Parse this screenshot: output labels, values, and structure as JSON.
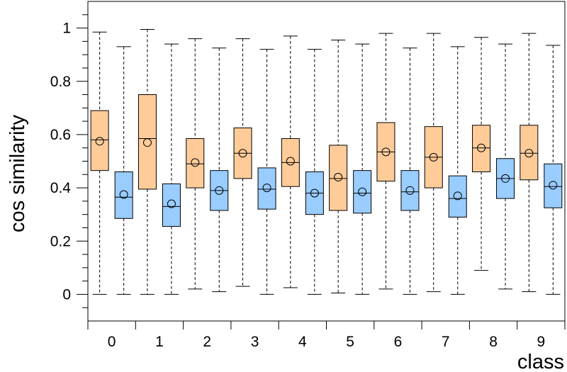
{
  "chart_data": {
    "type": "boxplot",
    "title": "",
    "xlabel": "class",
    "ylabel": "cos similarity",
    "ylim": [
      -0.1,
      1.1
    ],
    "yticks": [
      "0",
      "0.2",
      "0.4",
      "0.6",
      "0.8",
      "1"
    ],
    "categories": [
      "0",
      "1",
      "2",
      "3",
      "4",
      "5",
      "6",
      "7",
      "8",
      "9"
    ],
    "grid": false,
    "legend": "none",
    "series": [
      {
        "color": "#FFCC99",
        "boxes": [
          {
            "min": 0.0,
            "q1": 0.465,
            "median": 0.58,
            "q3": 0.69,
            "max": 0.985,
            "mean": 0.575
          },
          {
            "min": 0.0,
            "q1": 0.395,
            "median": 0.585,
            "q3": 0.75,
            "max": 0.995,
            "mean": 0.57
          },
          {
            "min": 0.02,
            "q1": 0.4,
            "median": 0.49,
            "q3": 0.585,
            "max": 0.96,
            "mean": 0.495
          },
          {
            "min": 0.03,
            "q1": 0.435,
            "median": 0.53,
            "q3": 0.625,
            "max": 0.96,
            "mean": 0.53
          },
          {
            "min": 0.025,
            "q1": 0.405,
            "median": 0.495,
            "q3": 0.585,
            "max": 0.97,
            "mean": 0.5
          },
          {
            "min": 0.005,
            "q1": 0.315,
            "median": 0.435,
            "q3": 0.56,
            "max": 0.955,
            "mean": 0.44
          },
          {
            "min": 0.02,
            "q1": 0.425,
            "median": 0.535,
            "q3": 0.645,
            "max": 0.98,
            "mean": 0.535
          },
          {
            "min": 0.01,
            "q1": 0.4,
            "median": 0.515,
            "q3": 0.63,
            "max": 0.98,
            "mean": 0.515
          },
          {
            "min": 0.09,
            "q1": 0.46,
            "median": 0.55,
            "q3": 0.635,
            "max": 0.965,
            "mean": 0.55
          },
          {
            "min": 0.01,
            "q1": 0.43,
            "median": 0.53,
            "q3": 0.635,
            "max": 0.98,
            "mean": 0.53
          }
        ]
      },
      {
        "color": "#99CCFF",
        "boxes": [
          {
            "min": 0.0,
            "q1": 0.285,
            "median": 0.365,
            "q3": 0.46,
            "max": 0.93,
            "mean": 0.375
          },
          {
            "min": 0.0,
            "q1": 0.255,
            "median": 0.33,
            "q3": 0.415,
            "max": 0.94,
            "mean": 0.34
          },
          {
            "min": 0.01,
            "q1": 0.315,
            "median": 0.39,
            "q3": 0.465,
            "max": 0.925,
            "mean": 0.39
          },
          {
            "min": 0.0,
            "q1": 0.32,
            "median": 0.395,
            "q3": 0.475,
            "max": 0.92,
            "mean": 0.4
          },
          {
            "min": 0.0,
            "q1": 0.3,
            "median": 0.38,
            "q3": 0.46,
            "max": 0.92,
            "mean": 0.38
          },
          {
            "min": 0.0,
            "q1": 0.305,
            "median": 0.38,
            "q3": 0.465,
            "max": 0.94,
            "mean": 0.385
          },
          {
            "min": 0.0,
            "q1": 0.315,
            "median": 0.385,
            "q3": 0.465,
            "max": 0.925,
            "mean": 0.39
          },
          {
            "min": 0.0,
            "q1": 0.29,
            "median": 0.36,
            "q3": 0.445,
            "max": 0.93,
            "mean": 0.37
          },
          {
            "min": 0.02,
            "q1": 0.36,
            "median": 0.435,
            "q3": 0.51,
            "max": 0.94,
            "mean": 0.435
          },
          {
            "min": 0.0,
            "q1": 0.325,
            "median": 0.405,
            "q3": 0.49,
            "max": 0.935,
            "mean": 0.41
          }
        ]
      }
    ]
  }
}
